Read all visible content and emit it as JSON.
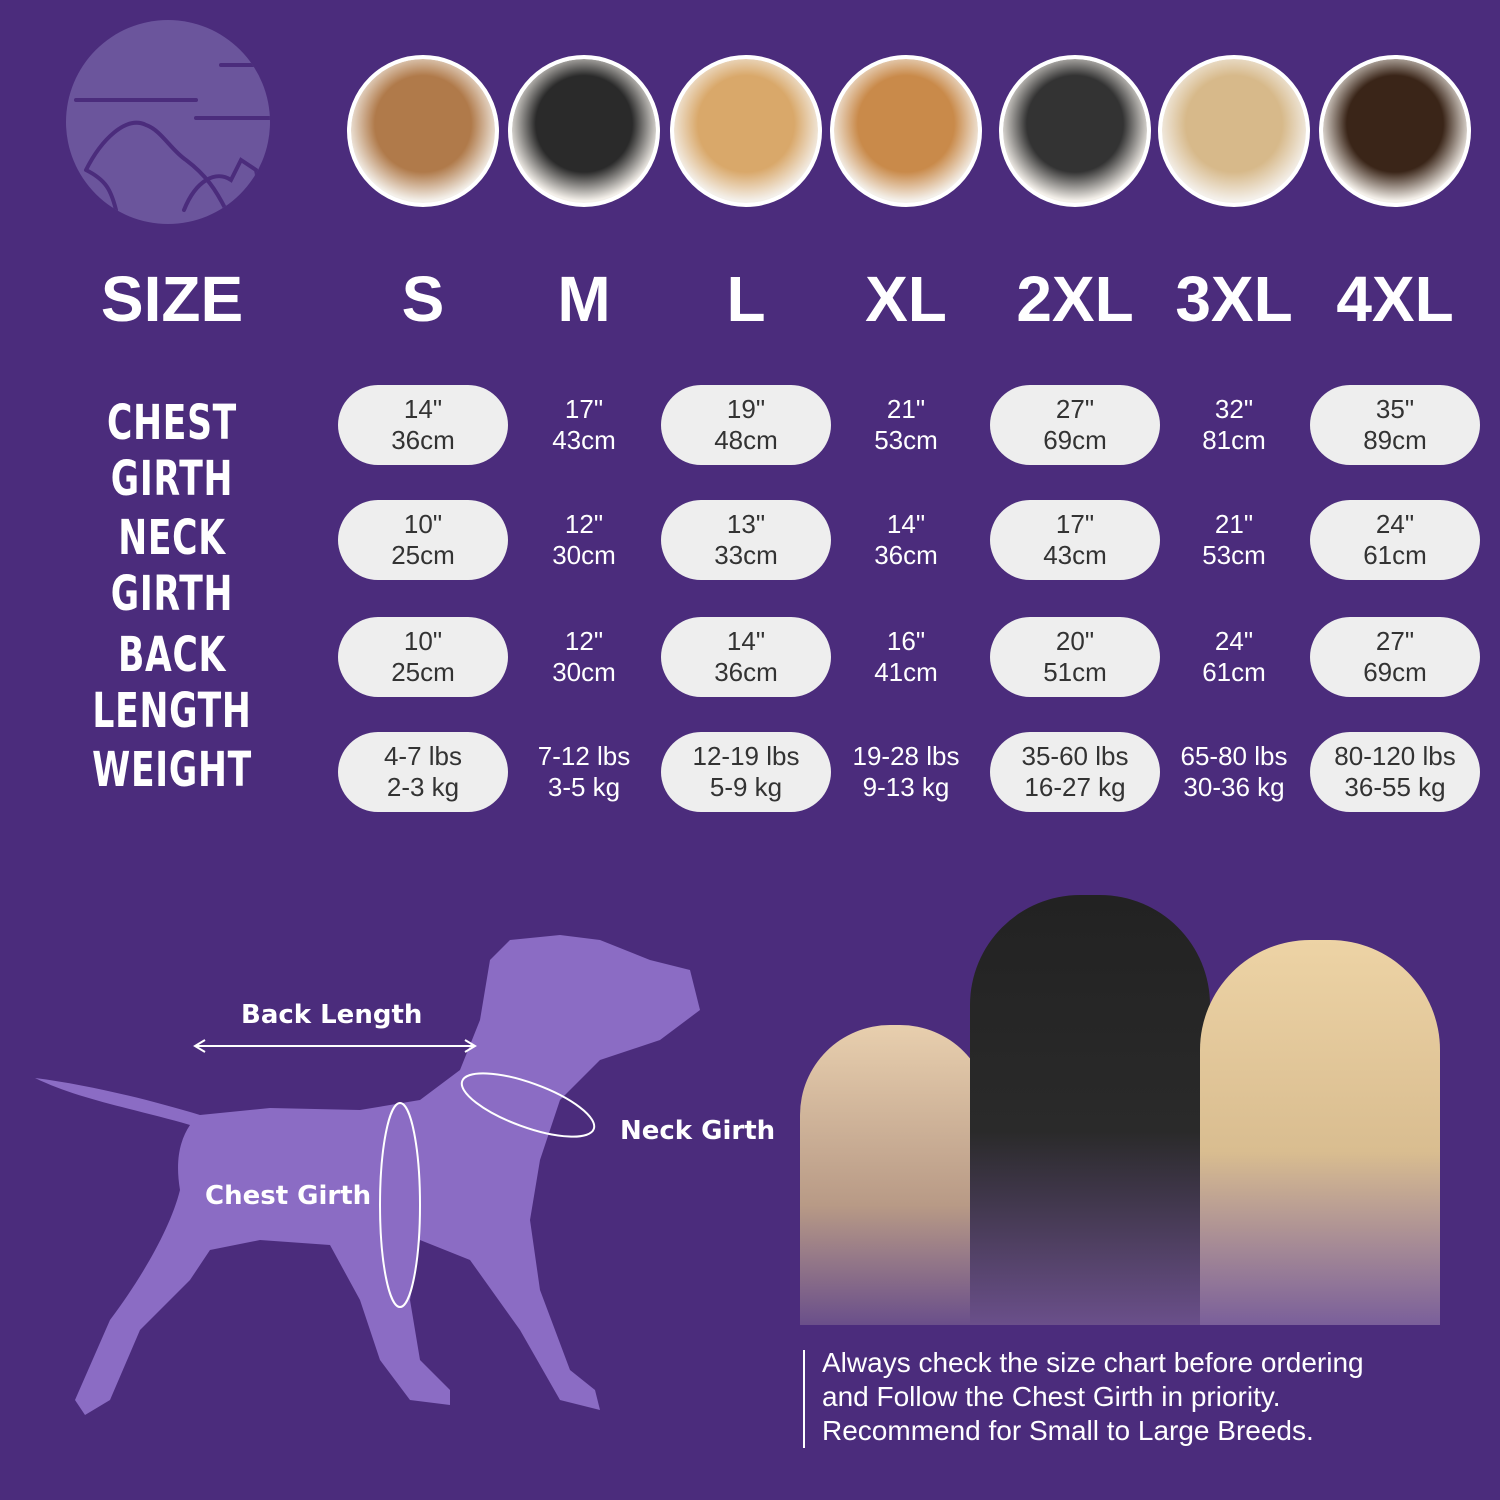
{
  "colors": {
    "background": "#4b2c7c",
    "pill": "#eeeeee",
    "silhouette": "#8b6cc4"
  },
  "logo": {
    "icon": "dog-cat-icon"
  },
  "photos": [
    "shih-tzu",
    "boston-terrier",
    "cocker-spaniel",
    "beagle",
    "border-collie",
    "labrador",
    "doberman"
  ],
  "header": {
    "label": "SIZE",
    "sizes": [
      "S",
      "M",
      "L",
      "XL",
      "2XL",
      "3XL",
      "4XL"
    ]
  },
  "rows": [
    {
      "label": "CHEST GIRTH",
      "values": [
        [
          "14\"",
          "36cm"
        ],
        [
          "17\"",
          "43cm"
        ],
        [
          "19\"",
          "48cm"
        ],
        [
          "21\"",
          "53cm"
        ],
        [
          "27\"",
          "69cm"
        ],
        [
          "32\"",
          "81cm"
        ],
        [
          "35\"",
          "89cm"
        ]
      ]
    },
    {
      "label": "NECK GIRTH",
      "values": [
        [
          "10\"",
          "25cm"
        ],
        [
          "12\"",
          "30cm"
        ],
        [
          "13\"",
          "33cm"
        ],
        [
          "14\"",
          "36cm"
        ],
        [
          "17\"",
          "43cm"
        ],
        [
          "21\"",
          "53cm"
        ],
        [
          "24\"",
          "61cm"
        ]
      ]
    },
    {
      "label": "BACK LENGTH",
      "values": [
        [
          "10\"",
          "25cm"
        ],
        [
          "12\"",
          "30cm"
        ],
        [
          "14\"",
          "36cm"
        ],
        [
          "16\"",
          "41cm"
        ],
        [
          "20\"",
          "51cm"
        ],
        [
          "24\"",
          "61cm"
        ],
        [
          "27\"",
          "69cm"
        ]
      ]
    },
    {
      "label": "WEIGHT",
      "values": [
        [
          "4-7 lbs",
          "2-3 kg"
        ],
        [
          "7-12 lbs",
          "3-5 kg"
        ],
        [
          "12-19 lbs",
          "5-9 kg"
        ],
        [
          "19-28 lbs",
          "9-13 kg"
        ],
        [
          "35-60 lbs",
          "16-27 kg"
        ],
        [
          "65-80 lbs",
          "30-36 kg"
        ],
        [
          "80-120 lbs",
          "36-55 kg"
        ]
      ]
    }
  ],
  "diagram": {
    "back_length": "Back Length",
    "neck_girth": "Neck Girth",
    "chest_girth": "Chest Girth"
  },
  "note": [
    "Always check the size chart before ordering",
    "and Follow the Chest Girth in priority.",
    "Recommend for Small to Large Breeds."
  ]
}
